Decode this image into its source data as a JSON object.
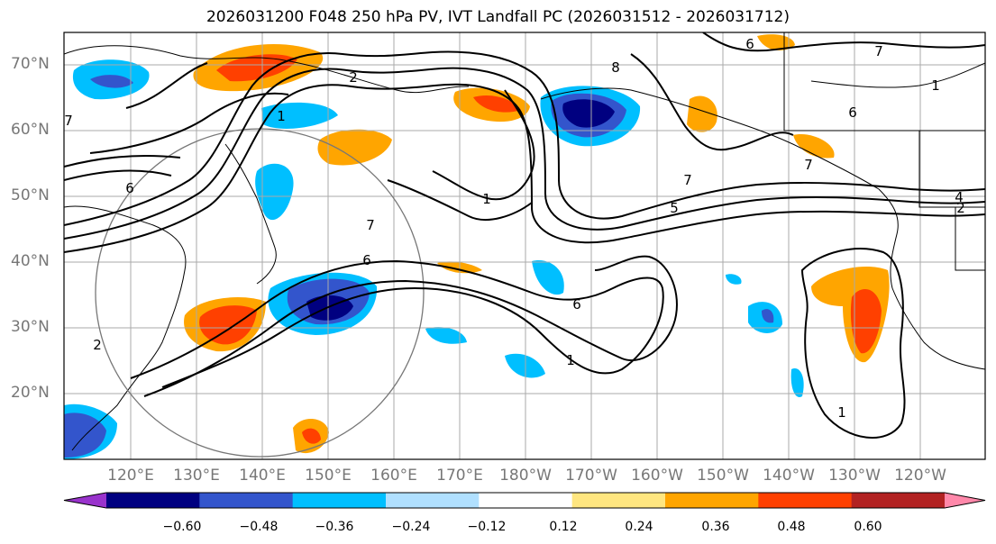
{
  "title": "2026031200 F048 250 hPa PV, IVT Landfall PC (2026031512 - 2026031712)",
  "lat_labels": [
    "70°N",
    "60°N",
    "50°N",
    "40°N",
    "30°N",
    "20°N"
  ],
  "lon_labels": [
    "120°E",
    "130°E",
    "140°E",
    "150°E",
    "160°E",
    "170°E",
    "180°W",
    "170°W",
    "160°W",
    "150°W",
    "140°W",
    "130°W",
    "120°W"
  ],
  "colorbar": {
    "colors": [
      "#9933cc",
      "#000080",
      "#3355cc",
      "#00bfff",
      "#b0e0ff",
      "#ffffff",
      "#ffe680",
      "#ffa500",
      "#ff4000",
      "#b22222",
      "#ff88aa"
    ],
    "ticks": [
      "−0.60",
      "−0.48",
      "−0.36",
      "−0.24",
      "−0.12",
      "0.12",
      "0.24",
      "0.36",
      "0.48",
      "0.60"
    ]
  },
  "contour_labels": [
    "2",
    "1",
    "6",
    "7",
    "8",
    "1",
    "5",
    "4",
    "2",
    "6",
    "7",
    "7",
    "1",
    "6",
    "2",
    "1",
    "7",
    "6",
    "6",
    "7",
    "1"
  ]
}
